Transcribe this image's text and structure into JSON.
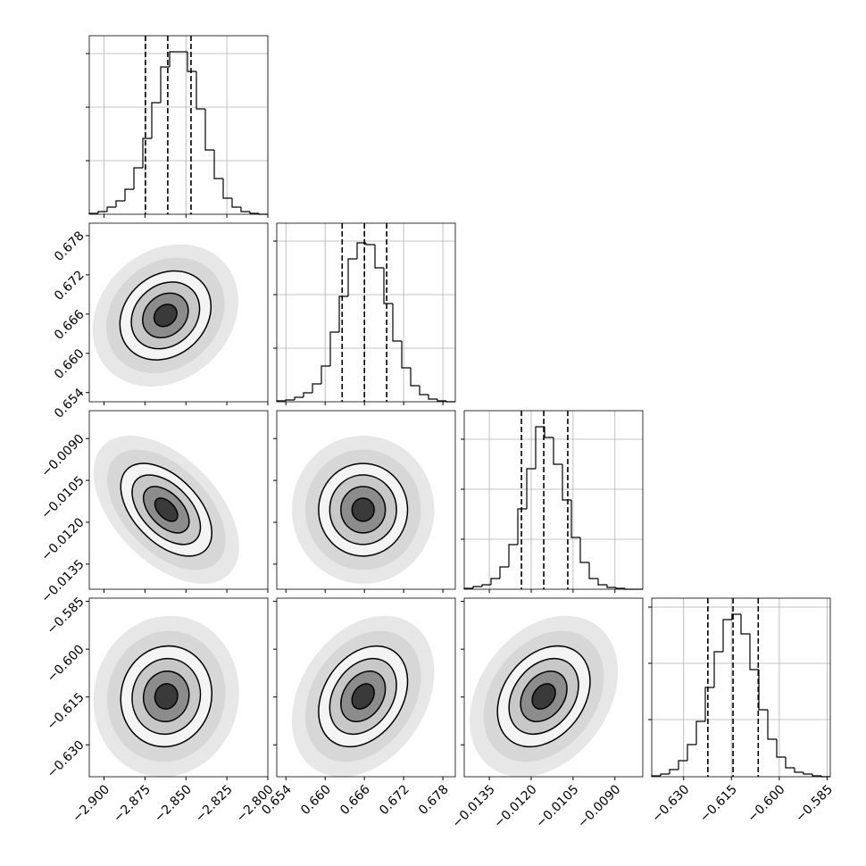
{
  "chart_data": {
    "type": "corner",
    "levels": [
      0.5,
      1,
      1.5,
      2
    ],
    "grid": true,
    "color": "#000000",
    "params": [
      {
        "lim": [
          -2.909,
          -2.8
        ],
        "ticks": [
          {
            "value": -2.9,
            "label": "−2.900"
          },
          {
            "value": -2.875,
            "label": "−2.875"
          },
          {
            "value": -2.85,
            "label": "−2.850"
          },
          {
            "value": -2.825,
            "label": "−2.825"
          },
          {
            "value": -2.8,
            "label": "−2.800"
          }
        ]
      },
      {
        "lim": [
          0.6526,
          0.6799
        ],
        "ticks": [
          0.654,
          {
            "value": 0.66,
            "label": "0.660"
          },
          0.666,
          0.672,
          0.678
        ]
      },
      {
        "lim": [
          -0.0144,
          -0.008
        ],
        "ticks": [
          {
            "value": -0.0135,
            "label": "−0.0135"
          },
          {
            "value": -0.012,
            "label": "−0.0120"
          },
          {
            "value": -0.0105,
            "label": "−0.0105"
          },
          {
            "value": -0.009,
            "label": "−0.0090"
          }
        ]
      },
      {
        "lim": [
          -0.64,
          -0.584
        ],
        "ticks": [
          {
            "value": -0.63,
            "label": "−0.630"
          },
          {
            "value": -0.615,
            "label": "−0.615"
          },
          {
            "value": -0.6,
            "label": "−0.600"
          },
          {
            "value": -0.585,
            "label": "−0.585"
          }
        ]
      }
    ],
    "hists": [
      {
        "bins": [
          -2.909,
          -2.90355,
          -2.8981,
          -2.89265,
          -2.8872,
          -2.88175,
          -2.8763,
          -2.87085,
          -2.8654,
          -2.85995,
          -2.8545,
          -2.84905,
          -2.8436,
          -2.83815,
          -2.8327,
          -2.82725,
          -2.8218,
          -2.81635,
          -2.8109,
          -2.80545,
          -2.8
        ],
        "counts": [
          1,
          3,
          8,
          15,
          28,
          52,
          85,
          125,
          165,
          182,
          182,
          160,
          118,
          72,
          40,
          18,
          8,
          3,
          1,
          0
        ],
        "ylim": [
          0,
          200
        ],
        "yticks": [
          60,
          120,
          180
        ],
        "quantiles": [
          -2.8747,
          -2.8611,
          -2.8469
        ]
      },
      {
        "bins": [
          0.6526,
          0.653965,
          0.65533,
          0.656695,
          0.65806,
          0.659425,
          0.66079,
          0.662155,
          0.66352,
          0.664885,
          0.66625,
          0.667615,
          0.66898,
          0.670345,
          0.67171,
          0.673075,
          0.67444,
          0.675805,
          0.67717,
          0.678535,
          0.6799
        ],
        "counts": [
          1,
          2,
          5,
          10,
          20,
          40,
          78,
          118,
          160,
          178,
          176,
          150,
          110,
          68,
          38,
          18,
          8,
          3,
          1,
          0
        ],
        "ylim": [
          0,
          200
        ],
        "yticks": [
          60,
          120,
          180
        ],
        "quantiles": [
          0.6626,
          0.666,
          0.6694
        ]
      },
      {
        "bins": [
          -0.0144,
          -0.01408,
          -0.01376,
          -0.01344,
          -0.01312,
          -0.0128,
          -0.01248,
          -0.01216,
          -0.01184,
          -0.01152,
          -0.0112,
          -0.01088,
          -0.01056,
          -0.01024,
          -0.00992,
          -0.0096,
          -0.00928,
          -0.00896,
          -0.00864,
          -0.00832,
          -0.008
        ],
        "counts": [
          1,
          3,
          5,
          12,
          25,
          50,
          90,
          135,
          182,
          170,
          140,
          100,
          58,
          30,
          12,
          5,
          2,
          1,
          0,
          0
        ],
        "ylim": [
          0,
          200
        ],
        "yticks": [
          56,
          112,
          168
        ],
        "quantiles": [
          -0.01235,
          -0.01155,
          -0.01069
        ]
      },
      {
        "bins": [
          -0.64,
          -0.6372,
          -0.6344,
          -0.6316,
          -0.6288,
          -0.626,
          -0.6232,
          -0.6204,
          -0.6176,
          -0.6148,
          -0.612,
          -0.6092,
          -0.6064,
          -0.6036,
          -0.6008,
          -0.598,
          -0.5952,
          -0.5924,
          -0.5896,
          -0.5868,
          -0.584
        ],
        "counts": [
          1,
          3,
          8,
          18,
          36,
          62,
          100,
          140,
          176,
          182,
          160,
          120,
          75,
          42,
          22,
          10,
          5,
          3,
          1,
          0
        ],
        "ylim": [
          0,
          200
        ],
        "yticks": [
          64,
          127,
          190
        ],
        "quantiles": [
          -0.6224,
          -0.6145,
          -0.6066
        ]
      }
    ],
    "pairs": [
      {
        "x": 0,
        "y": 1,
        "center": [
          -2.8625,
          0.6658
        ],
        "sigma": [
          0.0139,
          0.0034
        ],
        "rho": 0.2
      },
      {
        "x": 0,
        "y": 2,
        "center": [
          -2.862,
          -0.01155
        ],
        "sigma": [
          0.0139,
          0.00083
        ],
        "rho": -0.5
      },
      {
        "x": 1,
        "y": 2,
        "center": [
          0.6658,
          -0.01155
        ],
        "sigma": [
          0.0034,
          0.00083
        ],
        "rho": 0.0
      },
      {
        "x": 0,
        "y": 3,
        "center": [
          -2.862,
          -0.6148
        ],
        "sigma": [
          0.0139,
          0.0079
        ],
        "rho": 0.05
      },
      {
        "x": 1,
        "y": 3,
        "center": [
          0.6658,
          -0.6148
        ],
        "sigma": [
          0.0034,
          0.0079
        ],
        "rho": 0.3
      },
      {
        "x": 2,
        "y": 3,
        "center": [
          -0.01155,
          -0.6148
        ],
        "sigma": [
          0.00083,
          0.0079
        ],
        "rho": 0.3
      }
    ]
  }
}
